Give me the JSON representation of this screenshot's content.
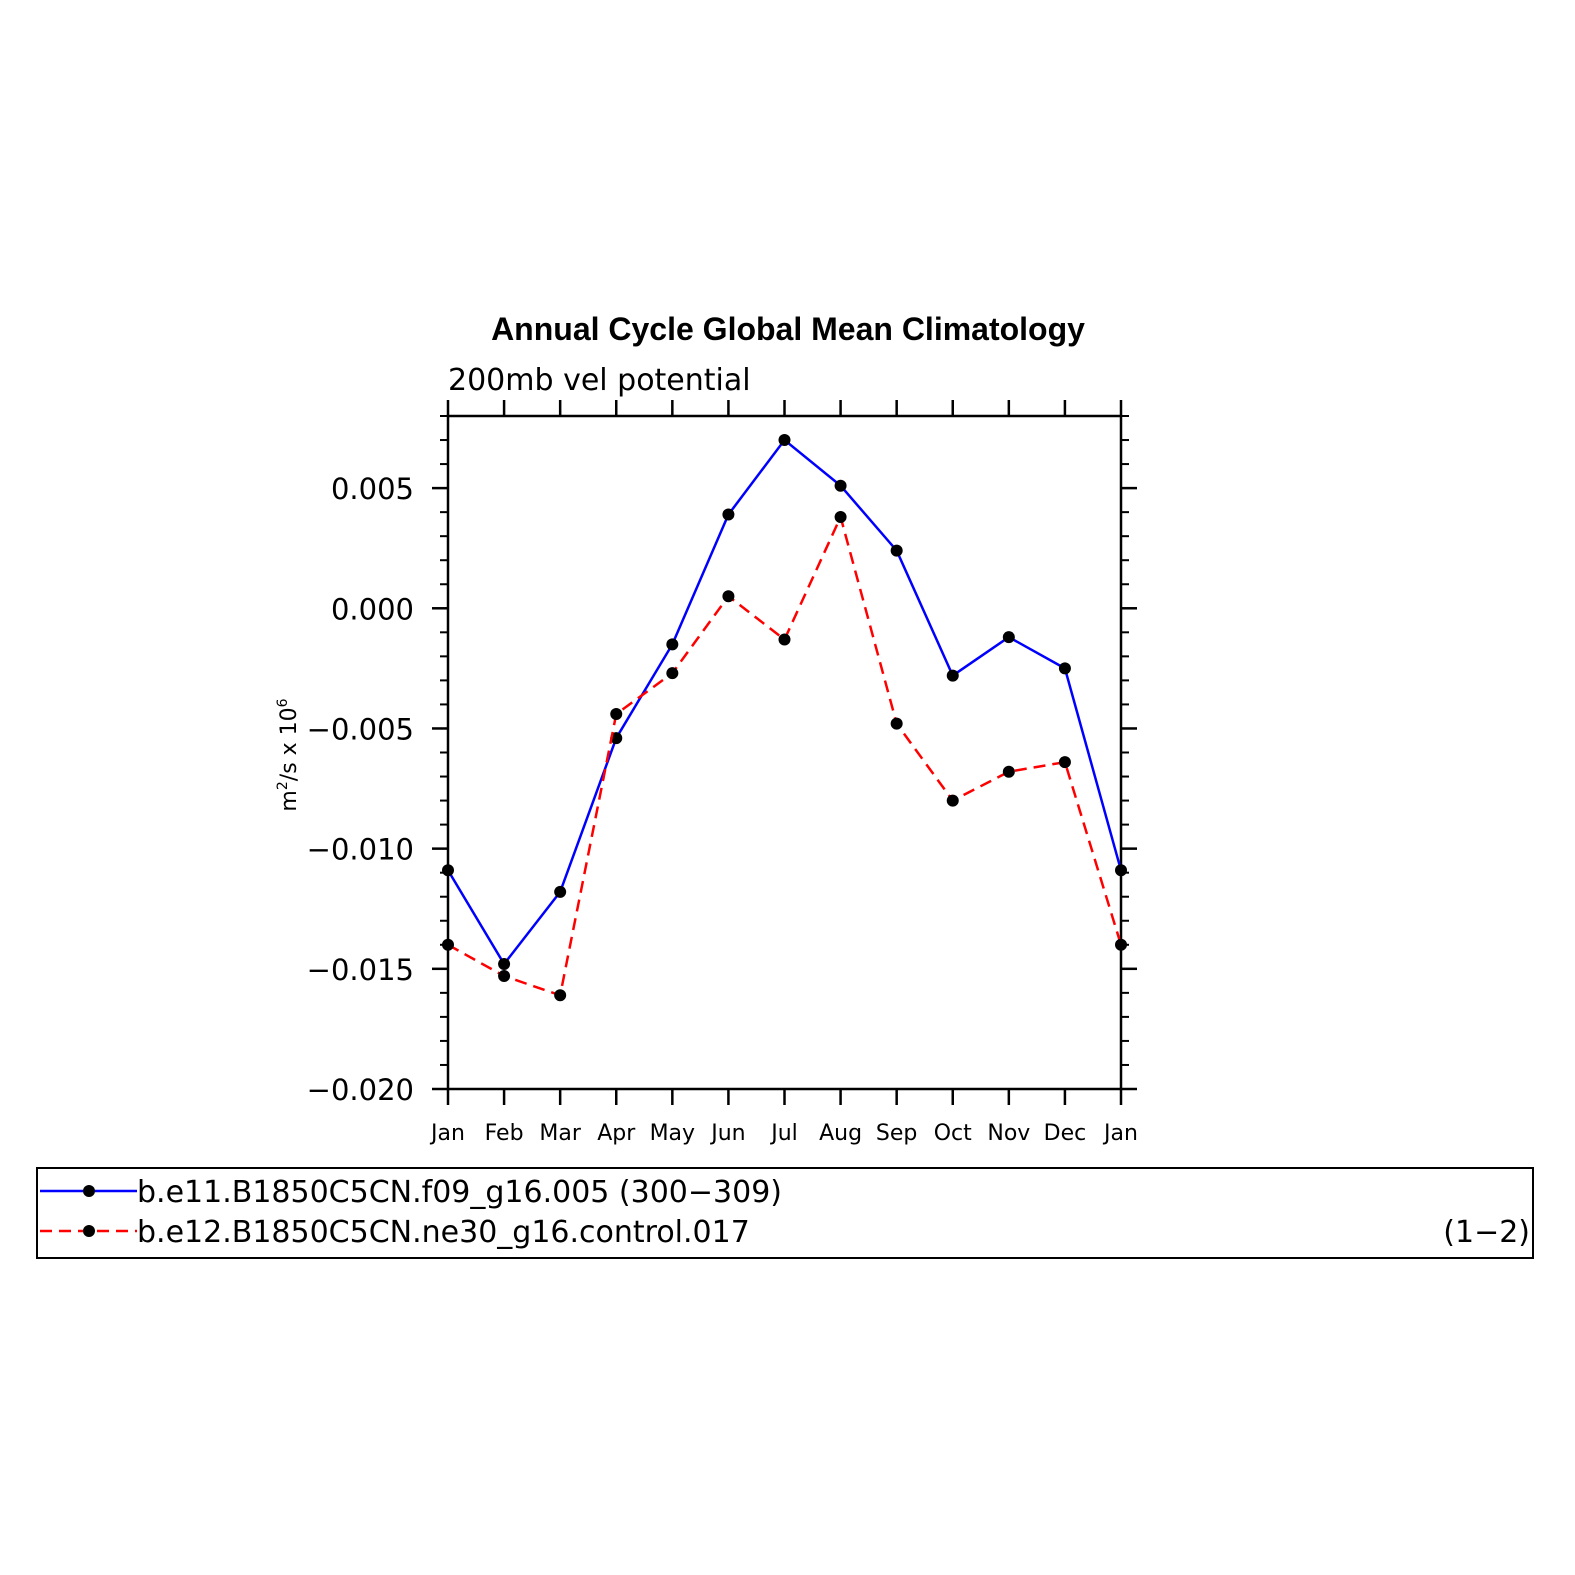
{
  "chart_data": {
    "type": "line",
    "title": "Annual Cycle Global Mean Climatology",
    "subtitle": "200mb vel potential",
    "ylabel_base": "m",
    "ylabel_exp1": "2",
    "ylabel_mid": "/s x 10",
    "ylabel_exp2": "6",
    "categories": [
      "Jan",
      "Feb",
      "Mar",
      "Apr",
      "May",
      "Jun",
      "Jul",
      "Aug",
      "Sep",
      "Oct",
      "Nov",
      "Dec",
      "Jan"
    ],
    "ylim": [
      -0.02,
      0.008
    ],
    "yticks": [
      -0.02,
      -0.015,
      -0.01,
      -0.005,
      0.0,
      0.005
    ],
    "ytick_labels": [
      "−0.020",
      "−0.015",
      "−0.010",
      "−0.005",
      "0.000",
      "0.005"
    ],
    "grid": false,
    "legend_position": "bottom",
    "series": [
      {
        "name": "b.e11.B1850C5CN.f09_g16.005 (300−309)",
        "color": "#0000ff",
        "dash": "solid",
        "values": [
          -0.0109,
          -0.0148,
          -0.0118,
          -0.0054,
          -0.0015,
          0.0039,
          0.007,
          0.0051,
          0.0024,
          -0.0028,
          -0.0012,
          -0.0025,
          -0.0109
        ]
      },
      {
        "name": "b.e12.B1850C5CN.ne30_g16.control.017",
        "color": "#ff0000",
        "dash": "dashed",
        "values": [
          -0.014,
          -0.0153,
          -0.0161,
          -0.0044,
          -0.0027,
          0.0005,
          -0.0013,
          0.0038,
          -0.0048,
          -0.008,
          -0.0068,
          -0.0064,
          -0.014
        ]
      }
    ],
    "legend_note": "(1−2)"
  }
}
